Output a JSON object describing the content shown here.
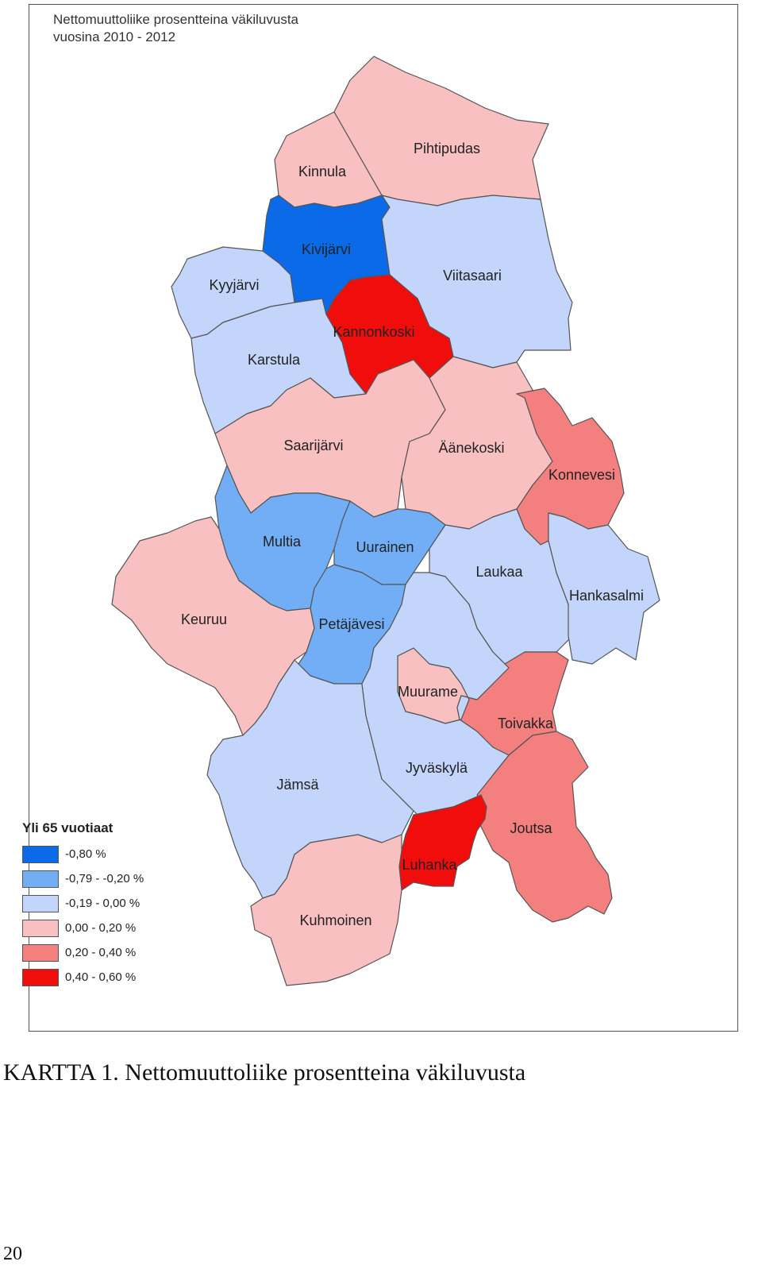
{
  "map": {
    "title_line1": "Nettomuuttoliike prosentteina väkiluvusta",
    "title_line2": "vuosina 2010 - 2012",
    "municipalities": [
      {
        "id": "pihtipudas",
        "name": "Pihtipudas",
        "class": 3
      },
      {
        "id": "kinnula",
        "name": "Kinnula",
        "class": 3
      },
      {
        "id": "kivijarvi",
        "name": "Kivijärvi",
        "class": 0
      },
      {
        "id": "kyyjarvi",
        "name": "Kyyjärvi",
        "class": 2
      },
      {
        "id": "viitasaari",
        "name": "Viitasaari",
        "class": 2
      },
      {
        "id": "kannonkoski",
        "name": "Kannonkoski",
        "class": 5
      },
      {
        "id": "karstula",
        "name": "Karstula",
        "class": 2
      },
      {
        "id": "saarijarvi",
        "name": "Saarijärvi",
        "class": 3
      },
      {
        "id": "aanekoski",
        "name": "Äänekoski",
        "class": 3
      },
      {
        "id": "konnevesi",
        "name": "Konnevesi",
        "class": 4
      },
      {
        "id": "multia",
        "name": "Multia",
        "class": 1
      },
      {
        "id": "uurainen",
        "name": "Uurainen",
        "class": 1
      },
      {
        "id": "laukaa",
        "name": "Laukaa",
        "class": 2
      },
      {
        "id": "hankasalmi",
        "name": "Hankasalmi",
        "class": 2
      },
      {
        "id": "keuruu",
        "name": "Keuruu",
        "class": 3
      },
      {
        "id": "petajavesi",
        "name": "Petäjävesi",
        "class": 1
      },
      {
        "id": "muurame",
        "name": "Muurame",
        "class": 3
      },
      {
        "id": "toivakka",
        "name": "Toivakka",
        "class": 4
      },
      {
        "id": "jamsa",
        "name": "Jämsä",
        "class": 2
      },
      {
        "id": "jyvaskyla",
        "name": "Jyväskylä",
        "class": 2
      },
      {
        "id": "joutsa",
        "name": "Joutsa",
        "class": 4
      },
      {
        "id": "luhanka",
        "name": "Luhanka",
        "class": 5
      },
      {
        "id": "kuhmoinen",
        "name": "Kuhmoinen",
        "class": 3
      }
    ]
  },
  "legend": {
    "title": "Yli 65 vuotiaat",
    "classes": [
      {
        "label": "-0,80 %",
        "color": "#0a6ae8"
      },
      {
        "label": "-0,79 - -0,20 %",
        "color": "#72aef6"
      },
      {
        "label": "-0,19 - 0,00 %",
        "color": "#c3d5fa"
      },
      {
        "label": "0,00 - 0,20 %",
        "color": "#f8c0c0"
      },
      {
        "label": "0,20 - 0,40 %",
        "color": "#f37f7e"
      },
      {
        "label": "0,40 - 0,60 %",
        "color": "#f20d0d"
      }
    ]
  },
  "caption": "KARTTA 1. Nettomuuttoliike prosentteina väkiluvusta",
  "page_number": "20"
}
